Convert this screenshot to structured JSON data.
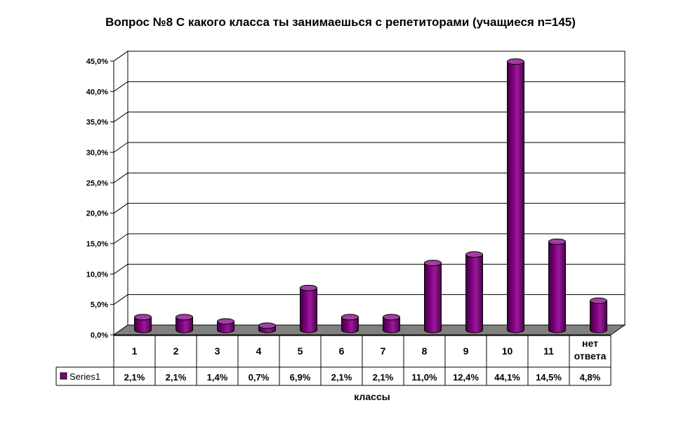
{
  "chart_data": {
    "type": "bar",
    "title": "Вопрос №8 С какого класса ты занимаешься с репетиторами (учащиеся n=145)",
    "xlabel": "классы",
    "ylabel": "",
    "categories": [
      "1",
      "2",
      "3",
      "4",
      "5",
      "6",
      "7",
      "8",
      "9",
      "10",
      "11",
      "нет ответа"
    ],
    "series": [
      {
        "name": "Series1",
        "values": [
          2.1,
          2.1,
          1.4,
          0.7,
          6.9,
          2.1,
          2.1,
          11.0,
          12.4,
          44.1,
          14.5,
          4.8
        ],
        "labels": [
          "2,1%",
          "2,1%",
          "1,4%",
          "0,7%",
          "6,9%",
          "2,1%",
          "2,1%",
          "11,0%",
          "12,4%",
          "44,1%",
          "14,5%",
          "4,8%"
        ]
      }
    ],
    "ylim": [
      0,
      45
    ],
    "yticks": [
      "0,0%",
      "5,0%",
      "10,0%",
      "15,0%",
      "20,0%",
      "25,0%",
      "30,0%",
      "35,0%",
      "40,0%",
      "45,0%"
    ],
    "grid": true,
    "legend": "data-table",
    "bar_color": "#800080"
  }
}
